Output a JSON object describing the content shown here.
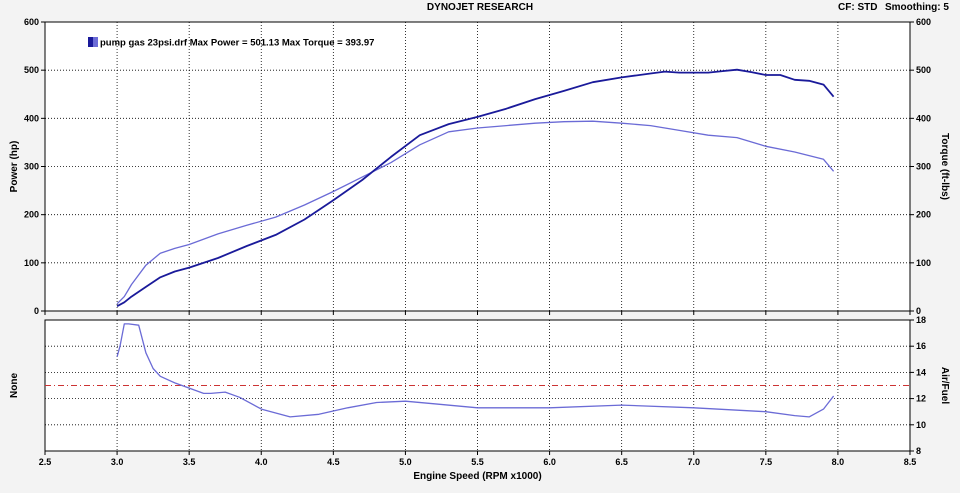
{
  "header": {
    "title": "DYNOJET RESEARCH",
    "cf": "CF: STD",
    "smoothing": "Smoothing: 5"
  },
  "colors": {
    "power": "#1a1a9a",
    "torque": "#6b6bd6",
    "afr": "#6b6bd6",
    "afr_ref": "#cc3333",
    "grid": "#000000"
  },
  "chart_data": [
    {
      "type": "line",
      "title": "",
      "xlabel": "Engine Speed (RPM x1000)",
      "ylabel": "Power (hp)",
      "y2label": "Torque (ft-lbs)",
      "xlim": [
        2.5,
        8.5
      ],
      "ylim": [
        0,
        600
      ],
      "y2lim": [
        0,
        600
      ],
      "x_ticks": [
        "2.5",
        "3.0",
        "3.5",
        "4.0",
        "4.5",
        "5.0",
        "5.5",
        "6.0",
        "6.5",
        "7.0",
        "7.5",
        "8.0",
        "8.5"
      ],
      "y_ticks": [
        "0",
        "100",
        "200",
        "300",
        "400",
        "500",
        "600"
      ],
      "y2_ticks": [
        "0",
        "100",
        "200",
        "300",
        "400",
        "500",
        "600"
      ],
      "grid": true,
      "legend": {
        "position": "top-left",
        "text": "pump gas 23psi.drf Max Power = 501.13 Max Torque = 393.97"
      },
      "series": [
        {
          "key": "power",
          "x": [
            3.0,
            3.05,
            3.1,
            3.2,
            3.3,
            3.4,
            3.5,
            3.7,
            3.9,
            4.1,
            4.3,
            4.5,
            4.7,
            4.9,
            5.1,
            5.3,
            5.5,
            5.7,
            5.9,
            6.1,
            6.3,
            6.5,
            6.7,
            6.8,
            6.9,
            7.1,
            7.2,
            7.3,
            7.4,
            7.5,
            7.6,
            7.7,
            7.8,
            7.9,
            7.97
          ],
          "y": [
            10,
            18,
            30,
            50,
            70,
            82,
            90,
            110,
            135,
            158,
            190,
            230,
            272,
            320,
            365,
            388,
            403,
            420,
            440,
            457,
            475,
            485,
            493,
            497,
            495,
            495,
            498,
            501,
            496,
            490,
            490,
            480,
            478,
            470,
            445
          ]
        },
        {
          "key": "torque",
          "x": [
            3.0,
            3.05,
            3.1,
            3.2,
            3.3,
            3.4,
            3.5,
            3.7,
            3.9,
            4.1,
            4.3,
            4.5,
            4.7,
            4.9,
            5.1,
            5.3,
            5.5,
            5.7,
            5.9,
            6.1,
            6.3,
            6.5,
            6.7,
            6.9,
            7.1,
            7.3,
            7.5,
            7.7,
            7.9,
            7.97
          ],
          "y": [
            15,
            30,
            55,
            95,
            120,
            130,
            138,
            160,
            178,
            195,
            220,
            248,
            278,
            308,
            345,
            372,
            380,
            385,
            390,
            393,
            394,
            390,
            385,
            375,
            365,
            360,
            342,
            330,
            315,
            290
          ]
        }
      ]
    },
    {
      "type": "line",
      "title": "",
      "xlabel": "Engine Speed (RPM x1000)",
      "ylabel": "None",
      "y2label": "Air/Fuel",
      "xlim": [
        2.5,
        8.5
      ],
      "y2lim": [
        8,
        18
      ],
      "y2_ticks": [
        "8",
        "10",
        "12",
        "14",
        "16",
        "18"
      ],
      "reference_line": 13,
      "grid": true,
      "series": [
        {
          "key": "afr",
          "x": [
            3.0,
            3.02,
            3.05,
            3.08,
            3.15,
            3.2,
            3.25,
            3.3,
            3.4,
            3.5,
            3.6,
            3.65,
            3.75,
            3.85,
            4.0,
            4.2,
            4.4,
            4.6,
            4.8,
            5.0,
            5.2,
            5.5,
            6.0,
            6.5,
            7.0,
            7.5,
            7.7,
            7.8,
            7.9,
            7.97
          ],
          "y": [
            15.2,
            16.0,
            17.7,
            17.7,
            17.6,
            15.5,
            14.3,
            13.7,
            13.2,
            12.8,
            12.4,
            12.4,
            12.5,
            12.1,
            11.2,
            10.6,
            10.8,
            11.3,
            11.7,
            11.8,
            11.6,
            11.3,
            11.3,
            11.5,
            11.3,
            11.0,
            10.7,
            10.6,
            11.2,
            12.2
          ]
        }
      ]
    }
  ]
}
